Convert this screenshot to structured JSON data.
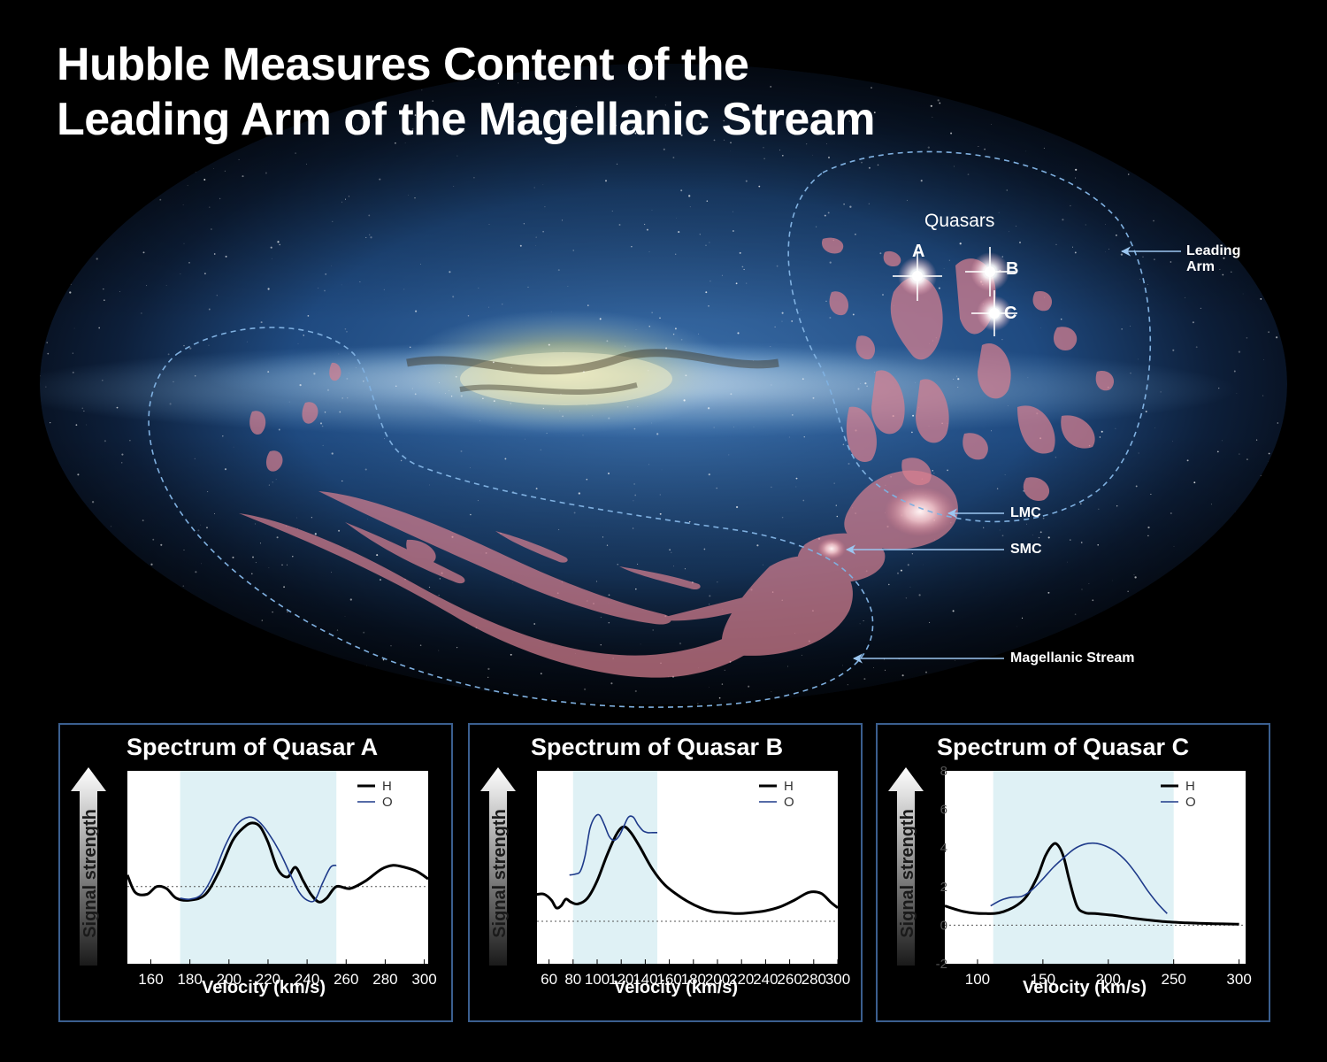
{
  "title": {
    "line1": "Hubble Measures Content of the",
    "line2": "Leading Arm of the Magellanic Stream"
  },
  "sky_map": {
    "quasars_label": "Quasars",
    "quasar_A": "A",
    "quasar_B": "B",
    "quasar_C": "C",
    "leading_arm_line1": "Leading",
    "leading_arm_line2": "Arm",
    "lmc": "LMC",
    "smc": "SMC",
    "magellanic_stream": "Magellanic Stream",
    "colors": {
      "gas": "#d98090",
      "dash": "#7fb0e0",
      "sky": "#2a5d9a",
      "milkyway": "#dfe6c8"
    }
  },
  "chart_data": [
    {
      "type": "line",
      "title": "Spectrum of Quasar A",
      "xlabel": "Velocity (km/s)",
      "ylabel": "Signal strength",
      "xlim": [
        148,
        302
      ],
      "ylim": [
        0,
        10
      ],
      "xticks": [
        160,
        180,
        200,
        220,
        240,
        260,
        280,
        300
      ],
      "highlight": [
        175,
        255
      ],
      "baseline": 4.0,
      "series": [
        {
          "name": "H",
          "color": "#000000",
          "x": [
            148,
            152,
            158,
            163,
            168,
            173,
            180,
            188,
            195,
            202,
            208,
            212,
            216,
            220,
            225,
            230,
            234,
            238,
            242,
            246,
            250,
            255,
            262,
            270,
            278,
            284,
            290,
            296,
            302
          ],
          "y": [
            4.6,
            3.7,
            3.6,
            4.0,
            3.9,
            3.4,
            3.3,
            3.6,
            4.8,
            6.4,
            7.1,
            7.3,
            7.1,
            6.3,
            4.9,
            4.5,
            5.0,
            4.3,
            3.6,
            3.2,
            3.4,
            4.0,
            3.9,
            4.3,
            4.9,
            5.1,
            5.0,
            4.8,
            4.4
          ]
        },
        {
          "name": "O",
          "color": "#1e3a8a",
          "x": [
            175,
            180,
            186,
            192,
            198,
            204,
            210,
            215,
            220,
            226,
            232,
            236,
            240,
            244,
            248,
            252,
            255
          ],
          "y": [
            3.4,
            3.35,
            3.6,
            4.6,
            6.1,
            7.2,
            7.6,
            7.4,
            6.8,
            5.8,
            4.5,
            3.7,
            3.3,
            3.3,
            4.2,
            5.0,
            5.1
          ]
        }
      ],
      "legend": [
        "H",
        "O"
      ]
    },
    {
      "type": "line",
      "title": "Spectrum of Quasar B",
      "xlabel": "Velocity (km/s)",
      "ylabel": "Signal strength",
      "xlim": [
        50,
        300
      ],
      "ylim": [
        0,
        10
      ],
      "xticks": [
        60,
        80,
        100,
        120,
        140,
        160,
        180,
        200,
        220,
        240,
        260,
        280,
        300
      ],
      "highlight": [
        80,
        150
      ],
      "baseline": 2.2,
      "series": [
        {
          "name": "H",
          "color": "#000000",
          "x": [
            50,
            56,
            62,
            66,
            70,
            74,
            78,
            84,
            92,
            100,
            108,
            116,
            122,
            128,
            136,
            146,
            156,
            166,
            176,
            186,
            196,
            206,
            216,
            228,
            240,
            252,
            264,
            276,
            286,
            294,
            300
          ],
          "y": [
            3.6,
            3.6,
            3.3,
            2.9,
            3.0,
            3.35,
            3.2,
            3.1,
            3.4,
            4.3,
            5.6,
            6.7,
            7.1,
            6.8,
            6.0,
            4.9,
            4.1,
            3.6,
            3.2,
            2.9,
            2.7,
            2.65,
            2.6,
            2.65,
            2.75,
            2.95,
            3.3,
            3.7,
            3.65,
            3.2,
            2.9
          ]
        },
        {
          "name": "O",
          "color": "#1e3a8a",
          "x": [
            77,
            82,
            86,
            90,
            94,
            98,
            102,
            106,
            110,
            114,
            118,
            122,
            126,
            130,
            134,
            138,
            142,
            146,
            150
          ],
          "y": [
            4.6,
            4.65,
            4.8,
            5.6,
            7.0,
            7.6,
            7.7,
            7.2,
            6.6,
            6.4,
            6.6,
            7.1,
            7.6,
            7.6,
            7.2,
            6.9,
            6.8,
            6.8,
            6.8
          ]
        }
      ],
      "legend": [
        "H",
        "O"
      ]
    },
    {
      "type": "line",
      "title": "Spectrum of Quasar C",
      "xlabel": "Velocity (km/s)",
      "ylabel": "Signal strength",
      "xlim": [
        75,
        305
      ],
      "ylim": [
        -2,
        8
      ],
      "xticks": [
        100,
        150,
        200,
        250,
        300
      ],
      "yticks": [
        -2,
        0,
        2,
        4,
        6,
        8
      ],
      "highlight": [
        112,
        250
      ],
      "baseline": 0,
      "series": [
        {
          "name": "H",
          "color": "#000000",
          "x": [
            75,
            90,
            105,
            120,
            135,
            145,
            152,
            158,
            162,
            166,
            170,
            176,
            182,
            190,
            205,
            220,
            240,
            260,
            280,
            300
          ],
          "y": [
            1.0,
            0.7,
            0.6,
            0.7,
            1.3,
            2.4,
            3.6,
            4.2,
            4.1,
            3.5,
            2.4,
            1.0,
            0.65,
            0.6,
            0.5,
            0.35,
            0.2,
            0.12,
            0.08,
            0.05
          ]
        },
        {
          "name": "O",
          "color": "#1e3a8a",
          "x": [
            110,
            118,
            126,
            134,
            142,
            150,
            158,
            166,
            174,
            182,
            190,
            198,
            206,
            214,
            222,
            230,
            238,
            245
          ],
          "y": [
            1.0,
            1.3,
            1.45,
            1.5,
            1.85,
            2.4,
            3.0,
            3.5,
            3.95,
            4.2,
            4.25,
            4.1,
            3.8,
            3.3,
            2.6,
            1.8,
            1.1,
            0.6
          ]
        }
      ],
      "legend": [
        "H",
        "O"
      ]
    }
  ]
}
